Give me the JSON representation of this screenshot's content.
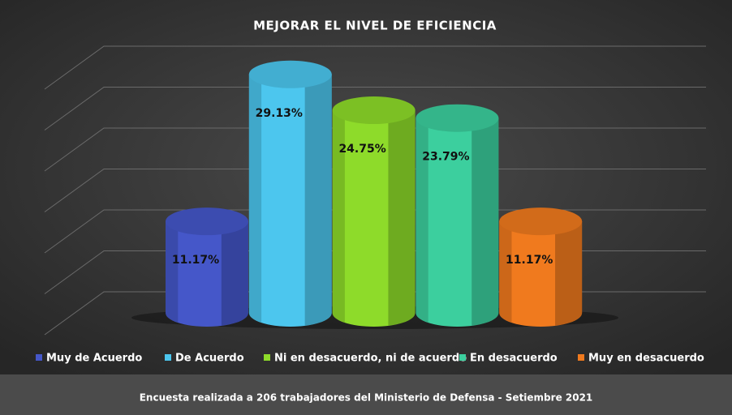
{
  "chart_data": {
    "type": "bar3d",
    "title": "MEJORAR EL NIVEL DE EFICIENCIA",
    "categories": [
      "Muy de Acuerdo",
      "De Acuerdo",
      "Ni en desacuerdo, ni de acuerdo",
      "En desacuerdo",
      "Muy en desacuerdo"
    ],
    "values": [
      11.17,
      29.13,
      24.75,
      23.79,
      11.17
    ],
    "value_labels": [
      "11.17%",
      "29.13%",
      "24.75%",
      "23.79%",
      "11.17%"
    ],
    "colors": [
      "#4557c9",
      "#4cc6ee",
      "#8edb2a",
      "#3ccf9e",
      "#f07a1e"
    ],
    "ylim": [
      0,
      30
    ],
    "yticks": [
      0,
      5,
      10,
      15,
      20,
      25,
      30
    ],
    "grid": true,
    "legend": "bottom",
    "footer": "Encuesta realizada a 206 trabajadores del Ministerio de Defensa - Setiembre 2021"
  }
}
